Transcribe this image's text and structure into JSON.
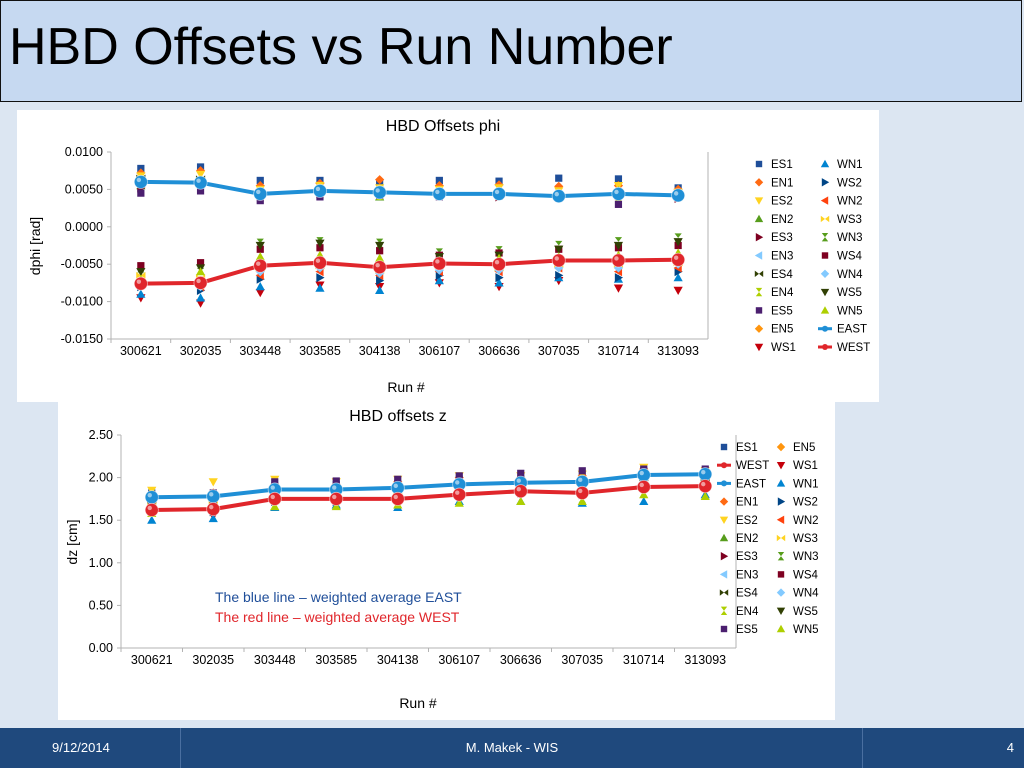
{
  "slide": {
    "title": "HBD Offsets vs Run Number",
    "footer": {
      "date": "9/12/2014",
      "author": "M. Makek - WIS",
      "page": "4"
    }
  },
  "colors": {
    "east": "#1f8fd6",
    "west": "#e0262b",
    "title_bg": "#c6d9f1",
    "footer_bg": "#1f497d"
  },
  "chart_data": [
    {
      "type": "scatter",
      "title": "HBD Offsets phi",
      "xlabel": "Run #",
      "ylabel": "dphi [rad]",
      "categories": [
        "300621",
        "302035",
        "303448",
        "303585",
        "304138",
        "306107",
        "306636",
        "307035",
        "310714",
        "313093"
      ],
      "ylim": [
        -0.015,
        0.01
      ],
      "yticks": [
        "0.0100",
        "0.0050",
        "0.0000",
        "-0.0050",
        "-0.0100",
        "-0.0150"
      ],
      "ytick_values": [
        0.01,
        0.005,
        0,
        -0.005,
        -0.01,
        -0.015
      ],
      "grid": false,
      "legend": "right, two columns",
      "legend_order": [
        "ES1",
        "WN1",
        "EN1",
        "WS2",
        "ES2",
        "WN2",
        "EN2",
        "WS3",
        "ES3",
        "WN3",
        "EN3",
        "WS4",
        "ES4",
        "WN4",
        "EN4",
        "WS5",
        "ES5",
        "WN5",
        "EN5",
        "EAST",
        "WS1",
        "WEST"
      ],
      "series": [
        {
          "name": "ES1",
          "values": [
            0.0078,
            0.008,
            0.0062,
            0.0062,
            0.0058,
            0.0062,
            0.0061,
            0.0065,
            0.0064,
            0.0052
          ]
        },
        {
          "name": "EN1",
          "values": [
            0.0072,
            0.0075,
            0.0055,
            0.0058,
            0.0063,
            0.0055,
            0.0056,
            0.0054,
            0.0055,
            0.005
          ]
        },
        {
          "name": "ES2",
          "values": [
            0.0068,
            0.007,
            0.005,
            0.0055,
            0.0052,
            0.005,
            0.0052,
            0.0048,
            0.0055,
            0.0046
          ]
        },
        {
          "name": "EN2",
          "values": [
            0.0055,
            0.0062,
            0.0045,
            0.005,
            0.004,
            0.0045,
            0.0045,
            0.0042,
            0.0048,
            0.004
          ]
        },
        {
          "name": "ES3",
          "values": [
            0.0052,
            0.0058,
            0.0042,
            0.0045,
            0.0046,
            0.0042,
            0.004,
            0.004,
            0.0042,
            0.0038
          ]
        },
        {
          "name": "EN3",
          "values": [
            0.0062,
            0.006,
            0.0045,
            0.0048,
            0.0044,
            0.0046,
            0.0043,
            0.0043,
            0.0044,
            0.0042
          ]
        },
        {
          "name": "ES4",
          "values": [
            0.0065,
            0.0064,
            0.0043,
            0.0047,
            0.0048,
            0.0044,
            0.0045,
            0.0042,
            0.0046,
            0.0043
          ]
        },
        {
          "name": "EN4",
          "values": [
            0.006,
            0.0058,
            0.004,
            0.0046,
            0.0042,
            0.0043,
            0.0042,
            0.0041,
            0.004,
            0.0041
          ]
        },
        {
          "name": "ES5",
          "values": [
            0.0045,
            0.0048,
            0.0035,
            0.004,
            0.0042,
            0.004,
            0.0041,
            0.0038,
            0.003,
            0.004
          ]
        },
        {
          "name": "EN5",
          "values": [
            0.0058,
            0.006,
            0.0042,
            0.0046,
            0.0045,
            0.0044,
            0.0044,
            0.0042,
            0.0045,
            0.0042
          ]
        },
        {
          "name": "WS1",
          "values": [
            -0.0095,
            -0.0102,
            -0.0088,
            -0.0078,
            -0.008,
            -0.0075,
            -0.008,
            -0.0072,
            -0.0082,
            -0.0085
          ]
        },
        {
          "name": "WN1",
          "values": [
            -0.009,
            -0.0095,
            -0.008,
            -0.0082,
            -0.0085,
            -0.0072,
            -0.0075,
            -0.0068,
            -0.007,
            -0.0068
          ]
        },
        {
          "name": "WS2",
          "values": [
            -0.008,
            -0.0085,
            -0.007,
            -0.0068,
            -0.0072,
            -0.0065,
            -0.0068,
            -0.0065,
            -0.0068,
            -0.006
          ]
        },
        {
          "name": "WN2",
          "values": [
            -0.0075,
            -0.008,
            -0.0065,
            -0.006,
            -0.0065,
            -0.006,
            -0.006,
            -0.0055,
            -0.006,
            -0.0055
          ]
        },
        {
          "name": "WS3",
          "values": [
            -0.0065,
            -0.0068,
            -0.0055,
            -0.0052,
            -0.0058,
            -0.0052,
            -0.0055,
            -0.005,
            -0.005,
            -0.0048
          ]
        },
        {
          "name": "WN3",
          "values": [
            -0.0055,
            -0.005,
            -0.0022,
            -0.002,
            -0.0022,
            -0.0035,
            -0.0032,
            -0.0025,
            -0.002,
            -0.0015
          ]
        },
        {
          "name": "WS4",
          "values": [
            -0.0052,
            -0.0048,
            -0.003,
            -0.0028,
            -0.0032,
            -0.0038,
            -0.0035,
            -0.003,
            -0.0028,
            -0.0025
          ]
        },
        {
          "name": "WN4",
          "values": [
            -0.0078,
            -0.008,
            -0.006,
            -0.0055,
            -0.0062,
            -0.0058,
            -0.0058,
            -0.0055,
            -0.0055,
            -0.005
          ]
        },
        {
          "name": "WS5",
          "values": [
            -0.006,
            -0.0055,
            -0.0025,
            -0.0022,
            -0.0025,
            -0.004,
            -0.0038,
            -0.003,
            -0.0025,
            -0.002
          ]
        },
        {
          "name": "WN5",
          "values": [
            -0.007,
            -0.006,
            -0.004,
            -0.0038,
            -0.0042,
            -0.0045,
            -0.0042,
            -0.004,
            -0.0038,
            -0.0035
          ]
        },
        {
          "name": "EAST",
          "line": true,
          "values": [
            0.006,
            0.0059,
            0.0044,
            0.0048,
            0.0046,
            0.0044,
            0.0044,
            0.0041,
            0.0044,
            0.0042
          ]
        },
        {
          "name": "WEST",
          "line": true,
          "values": [
            -0.0076,
            -0.0075,
            -0.0052,
            -0.0048,
            -0.0054,
            -0.0049,
            -0.005,
            -0.0045,
            -0.0045,
            -0.0044
          ]
        }
      ]
    },
    {
      "type": "scatter",
      "title": "HBD offsets z",
      "xlabel": "Run #",
      "ylabel": "dz [cm]",
      "categories": [
        "300621",
        "302035",
        "303448",
        "303585",
        "304138",
        "306107",
        "306636",
        "307035",
        "310714",
        "313093"
      ],
      "ylim": [
        0,
        2.5
      ],
      "yticks": [
        "2.50",
        "2.00",
        "1.50",
        "1.00",
        "0.50",
        "0.00"
      ],
      "ytick_values": [
        2.5,
        2.0,
        1.5,
        1.0,
        0.5,
        0
      ],
      "grid": false,
      "legend": "right, two columns",
      "legend_order": [
        "ES1",
        "EN5",
        "WEST",
        "WS1",
        "EAST",
        "WN1",
        "EN1",
        "WS2",
        "ES2",
        "WN2",
        "EN2",
        "WS3",
        "ES3",
        "WN3",
        "EN3",
        "WS4",
        "ES4",
        "WN4",
        "EN4",
        "WS5",
        "ES5",
        "WN5"
      ],
      "annotations": [
        {
          "text": "The blue line – weighted average EAST",
          "color": "#1f4e99"
        },
        {
          "text": "The red line  – weighted average WEST",
          "color": "#e0262b"
        }
      ],
      "series": [
        {
          "name": "ES1",
          "values": [
            1.82,
            1.8,
            1.9,
            1.92,
            1.93,
            1.98,
            1.98,
            2.0,
            2.08,
            2.05
          ]
        },
        {
          "name": "EN5",
          "values": [
            1.78,
            1.76,
            1.88,
            1.88,
            1.9,
            1.95,
            1.95,
            1.96,
            2.05,
            2.03
          ]
        },
        {
          "name": "WS1",
          "values": [
            1.62,
            1.55,
            1.7,
            1.72,
            1.7,
            1.78,
            1.8,
            1.8,
            1.9,
            1.85
          ]
        },
        {
          "name": "WN1",
          "values": [
            1.5,
            1.52,
            1.65,
            1.68,
            1.65,
            1.72,
            1.72,
            1.7,
            1.72,
            1.8
          ]
        },
        {
          "name": "EN1",
          "values": [
            1.8,
            1.82,
            1.92,
            1.92,
            1.95,
            2.0,
            2.0,
            2.02,
            2.1,
            2.06
          ]
        },
        {
          "name": "WS2",
          "values": [
            1.65,
            1.6,
            1.72,
            1.72,
            1.75,
            1.8,
            1.82,
            1.8,
            1.88,
            1.88
          ]
        },
        {
          "name": "ES2",
          "values": [
            1.85,
            1.95,
            1.98,
            1.95,
            1.98,
            2.02,
            2.02,
            2.04,
            2.12,
            2.08
          ]
        },
        {
          "name": "WN2",
          "values": [
            1.68,
            1.66,
            1.75,
            1.75,
            1.75,
            1.82,
            1.84,
            1.82,
            1.9,
            1.9
          ]
        },
        {
          "name": "EN2",
          "values": [
            1.72,
            1.7,
            1.8,
            1.8,
            1.82,
            1.85,
            1.86,
            1.88,
            1.92,
            1.92
          ]
        },
        {
          "name": "WS3",
          "values": [
            1.7,
            1.68,
            1.76,
            1.76,
            1.78,
            1.82,
            1.83,
            1.84,
            1.9,
            1.9
          ]
        },
        {
          "name": "ES3",
          "values": [
            1.76,
            1.74,
            1.84,
            1.84,
            1.86,
            1.9,
            1.92,
            1.92,
            1.98,
            1.96
          ]
        },
        {
          "name": "WN3",
          "values": [
            1.6,
            1.62,
            1.68,
            1.7,
            1.7,
            1.72,
            1.75,
            1.76,
            1.82,
            1.8
          ]
        },
        {
          "name": "EN3",
          "values": [
            1.7,
            1.72,
            1.82,
            1.82,
            1.84,
            1.88,
            1.9,
            1.9,
            1.95,
            1.95
          ]
        },
        {
          "name": "WS4",
          "values": [
            1.66,
            1.68,
            1.78,
            1.78,
            1.8,
            1.85,
            1.86,
            1.88,
            1.95,
            1.94
          ]
        },
        {
          "name": "ES4",
          "values": [
            1.74,
            1.76,
            1.86,
            1.86,
            1.88,
            1.92,
            1.93,
            1.94,
            2.0,
            1.98
          ]
        },
        {
          "name": "WN4",
          "values": [
            1.64,
            1.64,
            1.74,
            1.74,
            1.76,
            1.8,
            1.82,
            1.82,
            1.88,
            1.88
          ]
        },
        {
          "name": "EN4",
          "values": [
            1.72,
            1.74,
            1.84,
            1.84,
            1.86,
            1.9,
            1.91,
            1.92,
            1.98,
            1.97
          ]
        },
        {
          "name": "WS5",
          "values": [
            1.62,
            1.64,
            1.72,
            1.72,
            1.74,
            1.78,
            1.8,
            1.8,
            1.86,
            1.86
          ]
        },
        {
          "name": "ES5",
          "values": [
            1.8,
            1.82,
            1.95,
            1.96,
            1.98,
            2.02,
            2.05,
            2.08,
            2.1,
            2.1
          ]
        },
        {
          "name": "WN5",
          "values": [
            1.58,
            1.62,
            1.66,
            1.66,
            1.68,
            1.7,
            1.72,
            1.72,
            1.8,
            1.78
          ]
        },
        {
          "name": "EAST",
          "line": true,
          "values": [
            1.77,
            1.78,
            1.86,
            1.86,
            1.88,
            1.92,
            1.94,
            1.95,
            2.03,
            2.04
          ]
        },
        {
          "name": "WEST",
          "line": true,
          "values": [
            1.62,
            1.63,
            1.75,
            1.75,
            1.75,
            1.8,
            1.84,
            1.82,
            1.89,
            1.9
          ]
        }
      ]
    }
  ]
}
